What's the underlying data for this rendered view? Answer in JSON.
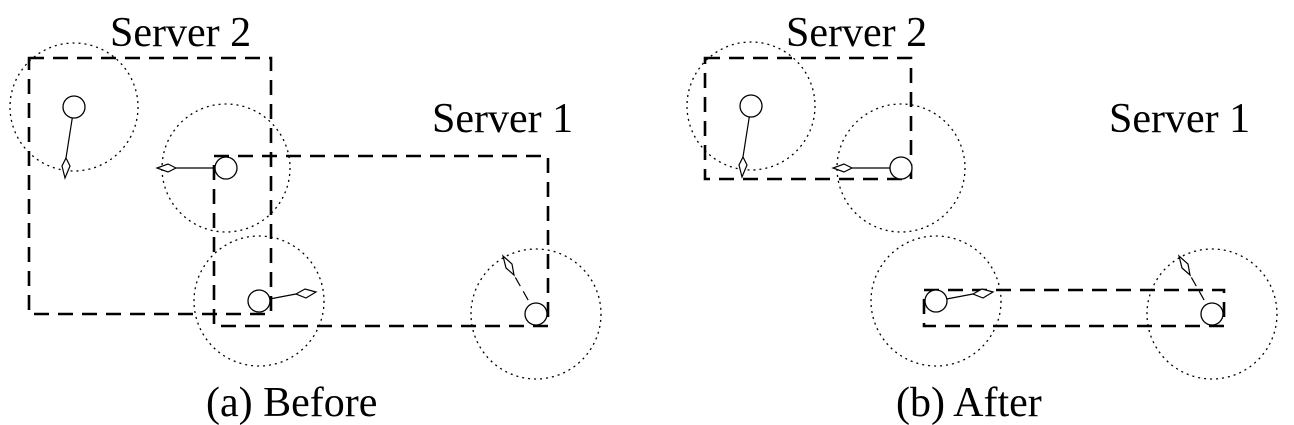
{
  "panels": [
    {
      "caption": "(a) Before",
      "server2_label": "Server 2",
      "server1_label": "Server 1"
    },
    {
      "caption": "(b) After",
      "server2_label": "Server 2",
      "server1_label": "Server 1"
    }
  ]
}
